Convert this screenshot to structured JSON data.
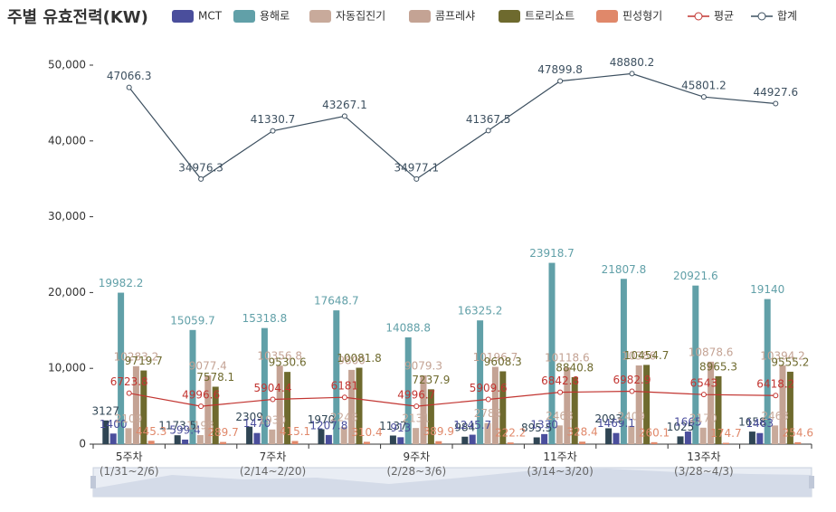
{
  "chart_data": {
    "type": "bar",
    "title": "주별 유효전력(KW)",
    "categories": [
      "5주차\n(1/31~2/6)",
      null,
      "7주차\n(2/14~2/20)",
      null,
      "9주차\n(2/28~3/6)",
      null,
      "11주차\n(3/14~3/20)",
      null,
      "13주차\n(3/28~4/3)",
      null
    ],
    "ylim": [
      0,
      50000
    ],
    "yticks": [
      0,
      {
        "value": 10000,
        "label": "10,000"
      },
      {
        "value": 20000,
        "label": "20,000"
      },
      {
        "value": 30000,
        "label": "30,000"
      },
      {
        "value": 40000,
        "label": "40,000"
      },
      {
        "value": 50000,
        "label": "50,000"
      }
    ],
    "series": [
      {
        "name": null,
        "type": "bar",
        "color": "#2f4554",
        "values": [
          3127,
          1173.5,
          2309,
          1970,
          1137,
          984,
          895.5,
          2093,
          1025,
          1658
        ]
      },
      {
        "name": "MCT",
        "type": "bar",
        "color": "#4a4e9c",
        "values": [
          1400,
          599.4,
          1470,
          1207.8,
          913,
          1245.7,
          1330,
          1469.1,
          1665,
          1463
        ]
      },
      {
        "name": "용해로",
        "type": "bar",
        "color": "#61a0a8",
        "values": [
          19982.2,
          15059.7,
          15318.8,
          17648.7,
          14088.8,
          16325.2,
          23918.7,
          21807.8,
          20921.6,
          19140
        ]
      },
      {
        "name": "자동집진기",
        "type": "bar",
        "color": "#c8aa9b",
        "values": [
          2109,
          1198,
          1930,
          2248,
          2131,
          2785,
          2468,
          2409,
          2170,
          2463
        ]
      },
      {
        "name": "콤프레샤",
        "type": "bar",
        "color": "#c4a394",
        "values": [
          10283.2,
          9077.4,
          10356.8,
          9800,
          9079.3,
          10196.7,
          10118.6,
          10386,
          10878.6,
          10394.2
        ]
      },
      {
        "name": "트로리쇼트",
        "type": "bar",
        "color": "#6e6a2e",
        "values": [
          9719.7,
          7578.1,
          9530.6,
          10081.8,
          7237.9,
          9608.3,
          8840.8,
          10454.7,
          8965.3,
          9555.2
        ]
      },
      {
        "name": "핀성형기",
        "type": "bar",
        "color": "#e0886a",
        "values": [
          445.3,
          289.7,
          415.1,
          310.4,
          389.9,
          222.2,
          328.4,
          260.1,
          174.7,
          254.6
        ]
      },
      {
        "name": "평균",
        "type": "line",
        "color": "#c23531",
        "values": [
          6723.8,
          4996.6,
          5904.4,
          6181,
          4996.7,
          5909.6,
          6842.8,
          6982.9,
          6543,
          6418.2
        ]
      },
      {
        "name": "합계",
        "type": "line",
        "color": "#3d5060",
        "values": [
          47066.3,
          34976.3,
          41330.7,
          43267.1,
          34977.1,
          41367.5,
          47899.8,
          48880.2,
          45801.2,
          44927.6
        ]
      }
    ]
  }
}
